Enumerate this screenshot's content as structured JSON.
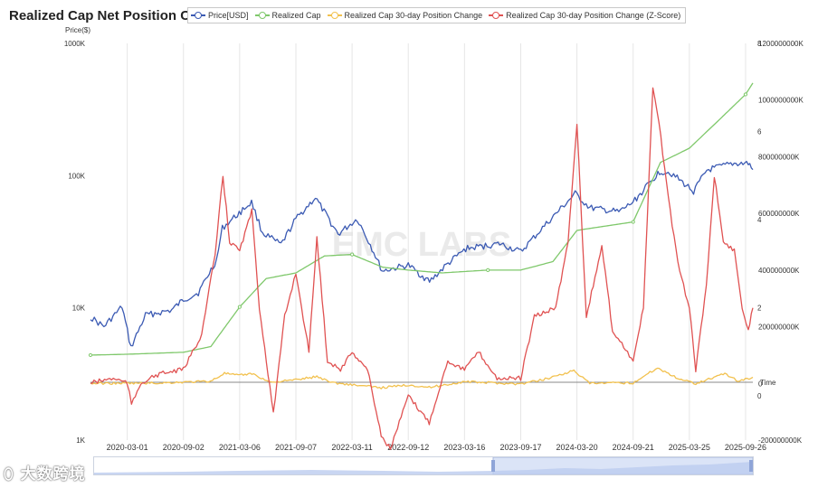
{
  "title": "Realized Cap Net Position Change",
  "watermark_text": "大数跨境",
  "chart_data": {
    "type": "line",
    "title": "Realized Cap Net Position Change",
    "watermark": "EMC LABS",
    "left_axis": {
      "label": "Price($)",
      "scale": "log",
      "ticks": [
        "1K",
        "10K",
        "100K",
        "1000K"
      ],
      "range": [
        1000,
        1000000
      ]
    },
    "right_axis_cap": {
      "ticks": [
        "-200000000K",
        "0",
        "200000000K",
        "400000000K",
        "600000000K",
        "800000000K",
        "1000000000K",
        "1200000000K"
      ],
      "range": [
        -200000000000,
        1200000000000
      ]
    },
    "right_axis_z": {
      "ticks": [
        "0",
        "2",
        "4",
        "6",
        "8"
      ],
      "range": [
        -1,
        8
      ]
    },
    "x_axis": {
      "label": "Time",
      "ticks": [
        "2020-03-01",
        "2020-09-02",
        "2021-03-06",
        "2021-09-07",
        "2022-03-11",
        "2022-09-12",
        "2023-03-16",
        "2023-09-17",
        "2024-03-20",
        "2024-09-21",
        "2025-03-25",
        "2025-09-26"
      ],
      "range": [
        "2019-11-01",
        "2025-10-20"
      ]
    },
    "grid": "vertical",
    "legend_position": "top",
    "series": [
      {
        "name": "Price[USD]",
        "color": "#3b5ab3",
        "axis": "left",
        "points": [
          [
            "2019-11-01",
            8500
          ],
          [
            "2019-12-15",
            7200
          ],
          [
            "2020-02-13",
            10200
          ],
          [
            "2020-03-13",
            5000
          ],
          [
            "2020-04-30",
            8800
          ],
          [
            "2020-07-25",
            9600
          ],
          [
            "2020-09-02",
            11500
          ],
          [
            "2020-10-21",
            13000
          ],
          [
            "2020-12-20",
            23000
          ],
          [
            "2021-01-08",
            40000
          ],
          [
            "2021-02-15",
            48000
          ],
          [
            "2021-04-14",
            63000
          ],
          [
            "2021-05-20",
            37000
          ],
          [
            "2021-07-20",
            30000
          ],
          [
            "2021-09-07",
            47000
          ],
          [
            "2021-11-10",
            68000
          ],
          [
            "2022-01-24",
            36000
          ],
          [
            "2022-03-28",
            47000
          ],
          [
            "2022-05-10",
            30000
          ],
          [
            "2022-06-18",
            19000
          ],
          [
            "2022-09-12",
            21000
          ],
          [
            "2022-11-21",
            15800
          ],
          [
            "2023-01-15",
            21000
          ],
          [
            "2023-03-20",
            28000
          ],
          [
            "2023-07-10",
            30500
          ],
          [
            "2023-09-17",
            26500
          ],
          [
            "2023-12-10",
            43000
          ],
          [
            "2024-03-14",
            73000
          ],
          [
            "2024-05-01",
            57000
          ],
          [
            "2024-08-05",
            53000
          ],
          [
            "2024-09-21",
            63000
          ],
          [
            "2024-12-17",
            107000
          ],
          [
            "2025-01-20",
            106000
          ],
          [
            "2025-04-08",
            76000
          ],
          [
            "2025-05-22",
            110000
          ],
          [
            "2025-08-14",
            123000
          ],
          [
            "2025-10-05",
            124000
          ],
          [
            "2025-10-20",
            111000
          ]
        ]
      },
      {
        "name": "Realized Cap",
        "color": "#7fc86b",
        "axis": "cap",
        "points": [
          [
            "2019-11-01",
            100000000000
          ],
          [
            "2020-03-01",
            103000000000
          ],
          [
            "2020-09-02",
            110000000000
          ],
          [
            "2020-12-01",
            130000000000
          ],
          [
            "2021-03-06",
            270000000000
          ],
          [
            "2021-06-01",
            370000000000
          ],
          [
            "2021-09-07",
            390000000000
          ],
          [
            "2021-12-10",
            450000000000
          ],
          [
            "2022-03-11",
            455000000000
          ],
          [
            "2022-06-20",
            410000000000
          ],
          [
            "2022-09-12",
            400000000000
          ],
          [
            "2023-01-01",
            390000000000
          ],
          [
            "2023-06-01",
            400000000000
          ],
          [
            "2023-09-17",
            400000000000
          ],
          [
            "2024-01-01",
            430000000000
          ],
          [
            "2024-03-20",
            540000000000
          ],
          [
            "2024-09-21",
            570000000000
          ],
          [
            "2024-12-20",
            780000000000
          ],
          [
            "2025-03-25",
            830000000000
          ],
          [
            "2025-07-01",
            930000000000
          ],
          [
            "2025-09-26",
            1020000000000
          ],
          [
            "2025-10-20",
            1060000000000
          ]
        ]
      },
      {
        "name": "Realized Cap 30-day Position Change",
        "color": "#f2c14e",
        "axis": "cap",
        "points": [
          [
            "2019-11-01",
            0
          ],
          [
            "2020-06-01",
            1000000000
          ],
          [
            "2020-12-01",
            8000000000
          ],
          [
            "2021-01-15",
            36000000000
          ],
          [
            "2021-03-01",
            28000000000
          ],
          [
            "2021-04-15",
            35000000000
          ],
          [
            "2021-06-15",
            4000000000
          ],
          [
            "2021-09-01",
            12000000000
          ],
          [
            "2021-11-15",
            24000000000
          ],
          [
            "2022-01-10",
            2000000000
          ],
          [
            "2022-06-15",
            -15000000000
          ],
          [
            "2022-09-15",
            -5000000000
          ],
          [
            "2022-11-20",
            -14000000000
          ],
          [
            "2023-03-16",
            6000000000
          ],
          [
            "2023-09-17",
            -2000000000
          ],
          [
            "2023-12-01",
            14000000000
          ],
          [
            "2024-03-10",
            45000000000
          ],
          [
            "2024-05-01",
            0
          ],
          [
            "2024-09-21",
            2000000000
          ],
          [
            "2024-12-10",
            55000000000
          ],
          [
            "2025-02-15",
            18000000000
          ],
          [
            "2025-04-15",
            0
          ],
          [
            "2025-07-20",
            35000000000
          ],
          [
            "2025-09-01",
            8000000000
          ],
          [
            "2025-10-20",
            22000000000
          ]
        ]
      },
      {
        "name": "Realized Cap 30-day Position Change (Z-Score)",
        "color": "#e05252",
        "axis": "z",
        "points": [
          [
            "2019-11-01",
            0.3
          ],
          [
            "2020-01-15",
            0.4
          ],
          [
            "2020-03-01",
            0.3
          ],
          [
            "2020-03-15",
            -0.2
          ],
          [
            "2020-04-15",
            0.3
          ],
          [
            "2020-06-15",
            0.5
          ],
          [
            "2020-09-02",
            0.6
          ],
          [
            "2020-11-01",
            1.4
          ],
          [
            "2020-12-15",
            3.2
          ],
          [
            "2021-01-10",
            5.0
          ],
          [
            "2021-02-01",
            3.5
          ],
          [
            "2021-03-06",
            3.3
          ],
          [
            "2021-04-15",
            4.2
          ],
          [
            "2021-05-10",
            2.0
          ],
          [
            "2021-06-25",
            -0.4
          ],
          [
            "2021-08-01",
            1.8
          ],
          [
            "2021-09-07",
            2.8
          ],
          [
            "2021-10-20",
            1.0
          ],
          [
            "2021-11-15",
            3.6
          ],
          [
            "2021-12-20",
            0.8
          ],
          [
            "2022-02-01",
            0.6
          ],
          [
            "2022-03-11",
            1.0
          ],
          [
            "2022-05-01",
            0.6
          ],
          [
            "2022-06-15",
            -0.9
          ],
          [
            "2022-07-15",
            -1.2
          ],
          [
            "2022-09-12",
            0.0
          ],
          [
            "2022-11-20",
            -0.6
          ],
          [
            "2023-01-20",
            0.8
          ],
          [
            "2023-03-16",
            0.6
          ],
          [
            "2023-05-01",
            1.0
          ],
          [
            "2023-07-01",
            0.4
          ],
          [
            "2023-09-17",
            0.4
          ],
          [
            "2023-11-01",
            1.8
          ],
          [
            "2024-01-10",
            2.0
          ],
          [
            "2024-02-20",
            3.5
          ],
          [
            "2024-03-20",
            6.2
          ],
          [
            "2024-04-20",
            1.8
          ],
          [
            "2024-06-10",
            3.4
          ],
          [
            "2024-07-15",
            1.5
          ],
          [
            "2024-09-21",
            0.8
          ],
          [
            "2024-10-25",
            2.0
          ],
          [
            "2024-11-25",
            7.0
          ],
          [
            "2024-12-15",
            6.2
          ],
          [
            "2025-01-15",
            4.5
          ],
          [
            "2025-02-15",
            3.0
          ],
          [
            "2025-03-25",
            2.0
          ],
          [
            "2025-04-15",
            0.6
          ],
          [
            "2025-05-20",
            2.5
          ],
          [
            "2025-06-15",
            5.0
          ],
          [
            "2025-07-15",
            3.5
          ],
          [
            "2025-08-20",
            3.3
          ],
          [
            "2025-09-15",
            2.0
          ],
          [
            "2025-10-05",
            1.5
          ],
          [
            "2025-10-20",
            2.0
          ]
        ]
      }
    ]
  }
}
